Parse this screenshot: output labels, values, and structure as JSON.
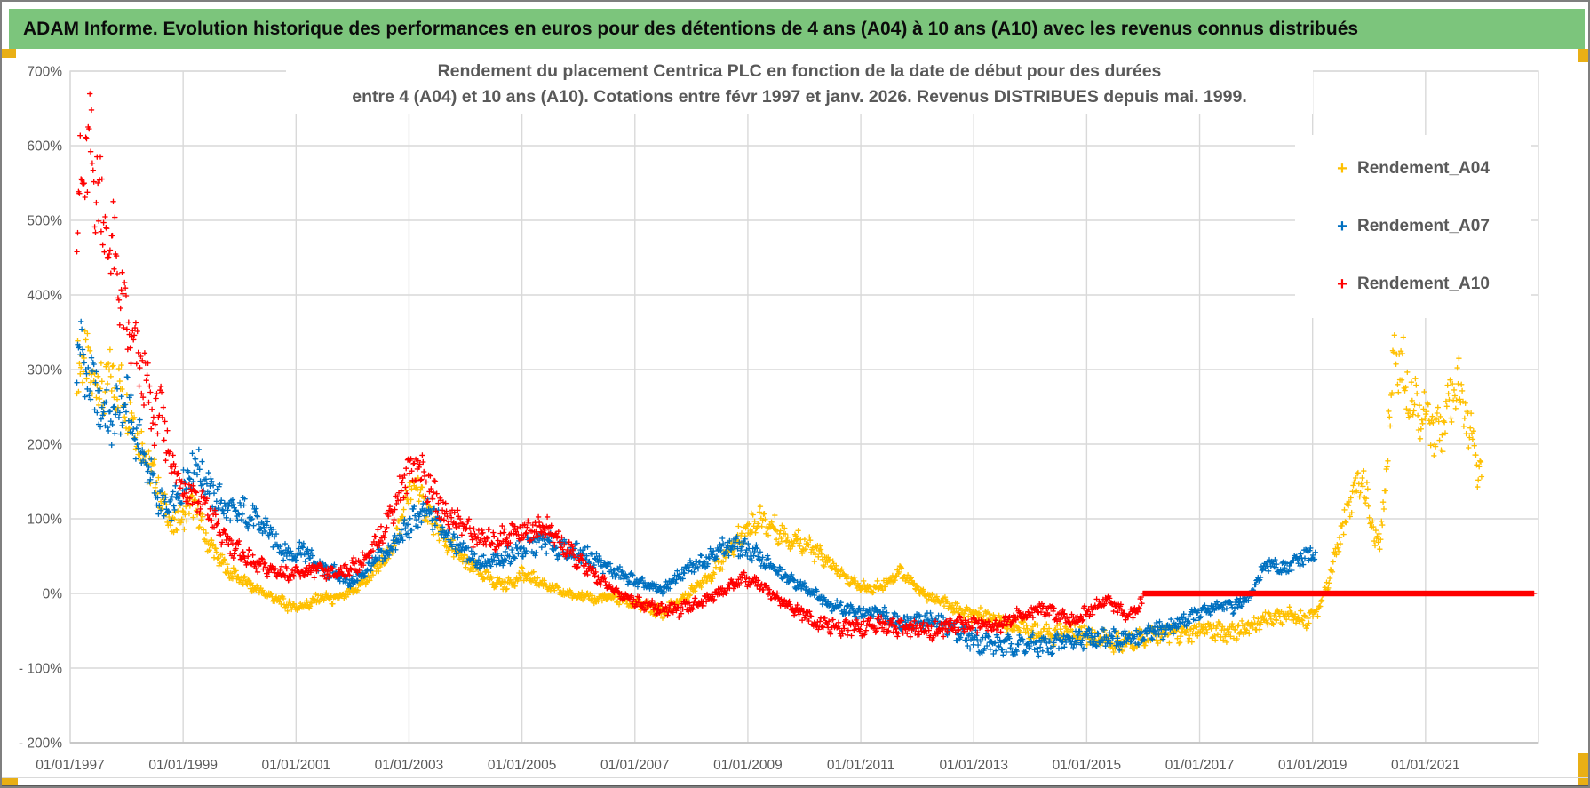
{
  "header": {
    "title": "ADAM Informe. Evolution historique des performances en euros pour des détentions de 4 ans (A04) à 10 ans (A10) avec les revenus connus distribués"
  },
  "colors": {
    "header_bg": "#7cc57c",
    "accent_gold": "#e9af15",
    "text_dark": "#595959",
    "grid": "#d9d9d9",
    "axis_line": "#bfbfbf",
    "series_a04": "#FFC000",
    "series_a07": "#0070C0",
    "series_a10": "#FF0000"
  },
  "chart_data": {
    "type": "scatter",
    "title_line1": "Rendement du placement Centrica PLC en fonction de la date de début pour des durées",
    "title_line2": "entre 4 (A04) et 10 ans (A10). Cotations entre févr 1997 et janv. 2026. Revenus DISTRIBUES depuis mai. 1999.",
    "legend_position": "right-top",
    "grid": true,
    "x_axis": {
      "min_year": 1997.0,
      "max_year": 2023.0,
      "ticks": [
        {
          "label": "01/01/1997",
          "year": 1997
        },
        {
          "label": "01/01/1999",
          "year": 1999
        },
        {
          "label": "01/01/2001",
          "year": 2001
        },
        {
          "label": "01/01/2003",
          "year": 2003
        },
        {
          "label": "01/01/2005",
          "year": 2005
        },
        {
          "label": "01/01/2007",
          "year": 2007
        },
        {
          "label": "01/01/2009",
          "year": 2009
        },
        {
          "label": "01/01/2011",
          "year": 2011
        },
        {
          "label": "01/01/2013",
          "year": 2013
        },
        {
          "label": "01/01/2015",
          "year": 2015
        },
        {
          "label": "01/01/2017",
          "year": 2017
        },
        {
          "label": "01/01/2019",
          "year": 2019
        },
        {
          "label": "01/01/2021",
          "year": 2021
        }
      ]
    },
    "y_axis": {
      "min": -200,
      "max": 700,
      "unit": "%",
      "ticks": [
        {
          "label": "700%",
          "value": 700
        },
        {
          "label": "600%",
          "value": 600
        },
        {
          "label": "500%",
          "value": 500
        },
        {
          "label": "400%",
          "value": 400
        },
        {
          "label": "300%",
          "value": 300
        },
        {
          "label": "200%",
          "value": 200
        },
        {
          "label": "100%",
          "value": 100
        },
        {
          "label": "0%",
          "value": 0
        },
        {
          "label": "- 100%",
          "value": -100
        },
        {
          "label": "- 200%",
          "value": -200
        }
      ]
    },
    "series": [
      {
        "name": "Rendement_A04",
        "color": "#FFC000",
        "marker": "plus",
        "start_year": 1997.12,
        "end_year": 2022.0,
        "points": [
          [
            1997.1,
            295
          ],
          [
            1997.2,
            320
          ],
          [
            1997.3,
            300
          ],
          [
            1997.45,
            285
          ],
          [
            1997.6,
            270
          ],
          [
            1997.75,
            290
          ],
          [
            1997.9,
            270
          ],
          [
            1998.05,
            250
          ],
          [
            1998.2,
            215
          ],
          [
            1998.4,
            175
          ],
          [
            1998.6,
            130
          ],
          [
            1998.8,
            90
          ],
          [
            1999.0,
            105
          ],
          [
            1999.2,
            120
          ],
          [
            1999.4,
            75
          ],
          [
            1999.6,
            50
          ],
          [
            1999.8,
            30
          ],
          [
            2000.0,
            20
          ],
          [
            2000.2,
            10
          ],
          [
            2000.45,
            0
          ],
          [
            2000.7,
            -10
          ],
          [
            2000.95,
            -18
          ],
          [
            2001.2,
            -15
          ],
          [
            2001.45,
            -5
          ],
          [
            2001.7,
            -8
          ],
          [
            2001.95,
            0
          ],
          [
            2002.2,
            15
          ],
          [
            2002.45,
            35
          ],
          [
            2002.7,
            60
          ],
          [
            2002.9,
            110
          ],
          [
            2003.1,
            150
          ],
          [
            2003.3,
            115
          ],
          [
            2003.5,
            85
          ],
          [
            2003.75,
            60
          ],
          [
            2004.0,
            42
          ],
          [
            2004.25,
            28
          ],
          [
            2004.5,
            15
          ],
          [
            2004.75,
            12
          ],
          [
            2005.0,
            25
          ],
          [
            2005.25,
            18
          ],
          [
            2005.5,
            8
          ],
          [
            2005.75,
            0
          ],
          [
            2006.0,
            -2
          ],
          [
            2006.3,
            -8
          ],
          [
            2006.6,
            -5
          ],
          [
            2006.9,
            -12
          ],
          [
            2007.2,
            -18
          ],
          [
            2007.5,
            -25
          ],
          [
            2007.8,
            -10
          ],
          [
            2008.1,
            10
          ],
          [
            2008.4,
            30
          ],
          [
            2008.7,
            60
          ],
          [
            2008.95,
            85
          ],
          [
            2009.2,
            100
          ],
          [
            2009.45,
            88
          ],
          [
            2009.7,
            75
          ],
          [
            2009.95,
            70
          ],
          [
            2010.2,
            55
          ],
          [
            2010.45,
            40
          ],
          [
            2010.7,
            22
          ],
          [
            2010.95,
            12
          ],
          [
            2011.2,
            5
          ],
          [
            2011.45,
            15
          ],
          [
            2011.7,
            30
          ],
          [
            2011.95,
            10
          ],
          [
            2012.2,
            -5
          ],
          [
            2012.45,
            -12
          ],
          [
            2012.7,
            -22
          ],
          [
            2012.95,
            -30
          ],
          [
            2013.2,
            -28
          ],
          [
            2013.5,
            -40
          ],
          [
            2013.8,
            -45
          ],
          [
            2014.1,
            -52
          ],
          [
            2014.4,
            -55
          ],
          [
            2014.7,
            -50
          ],
          [
            2015.0,
            -55
          ],
          [
            2015.3,
            -62
          ],
          [
            2015.6,
            -68
          ],
          [
            2015.9,
            -60
          ],
          [
            2016.2,
            -55
          ],
          [
            2016.5,
            -52
          ],
          [
            2016.8,
            -55
          ],
          [
            2017.1,
            -48
          ],
          [
            2017.4,
            -52
          ],
          [
            2017.7,
            -50
          ],
          [
            2018.0,
            -42
          ],
          [
            2018.3,
            -32
          ],
          [
            2018.6,
            -28
          ],
          [
            2018.9,
            -35
          ],
          [
            2019.1,
            -20
          ],
          [
            2019.3,
            20
          ],
          [
            2019.5,
            80
          ],
          [
            2019.7,
            130
          ],
          [
            2019.9,
            155
          ],
          [
            2020.05,
            90
          ],
          [
            2020.2,
            60
          ],
          [
            2020.35,
            220
          ],
          [
            2020.45,
            330
          ],
          [
            2020.55,
            305
          ],
          [
            2020.7,
            280
          ],
          [
            2020.85,
            255
          ],
          [
            2021.0,
            235
          ],
          [
            2021.15,
            215
          ],
          [
            2021.3,
            225
          ],
          [
            2021.45,
            250
          ],
          [
            2021.6,
            275
          ],
          [
            2021.75,
            225
          ],
          [
            2021.9,
            175
          ],
          [
            2022.0,
            150
          ]
        ]
      },
      {
        "name": "Rendement_A07",
        "color": "#0070C0",
        "marker": "plus",
        "start_year": 1997.12,
        "end_year": 2019.05,
        "points": [
          [
            1997.1,
            310
          ],
          [
            1997.17,
            340
          ],
          [
            1997.25,
            300
          ],
          [
            1997.4,
            275
          ],
          [
            1997.55,
            250
          ],
          [
            1997.7,
            230
          ],
          [
            1997.85,
            240
          ],
          [
            1998.0,
            255
          ],
          [
            1998.15,
            215
          ],
          [
            1998.3,
            185
          ],
          [
            1998.45,
            150
          ],
          [
            1998.6,
            120
          ],
          [
            1998.75,
            110
          ],
          [
            1998.9,
            125
          ],
          [
            1999.05,
            155
          ],
          [
            1999.2,
            178
          ],
          [
            1999.35,
            160
          ],
          [
            1999.5,
            135
          ],
          [
            1999.7,
            120
          ],
          [
            1999.9,
            105
          ],
          [
            2000.1,
            110
          ],
          [
            2000.3,
            95
          ],
          [
            2000.5,
            85
          ],
          [
            2000.7,
            65
          ],
          [
            2000.9,
            50
          ],
          [
            2001.1,
            60
          ],
          [
            2001.3,
            45
          ],
          [
            2001.5,
            30
          ],
          [
            2001.7,
            28
          ],
          [
            2001.9,
            15
          ],
          [
            2002.1,
            20
          ],
          [
            2002.35,
            40
          ],
          [
            2002.6,
            55
          ],
          [
            2002.85,
            75
          ],
          [
            2003.1,
            100
          ],
          [
            2003.35,
            108
          ],
          [
            2003.6,
            90
          ],
          [
            2003.85,
            65
          ],
          [
            2004.1,
            50
          ],
          [
            2004.35,
            38
          ],
          [
            2004.6,
            45
          ],
          [
            2004.85,
            55
          ],
          [
            2005.1,
            62
          ],
          [
            2005.4,
            70
          ],
          [
            2005.7,
            58
          ],
          [
            2006.0,
            55
          ],
          [
            2006.3,
            45
          ],
          [
            2006.6,
            30
          ],
          [
            2006.9,
            20
          ],
          [
            2007.2,
            10
          ],
          [
            2007.5,
            5
          ],
          [
            2007.8,
            25
          ],
          [
            2008.1,
            40
          ],
          [
            2008.4,
            55
          ],
          [
            2008.7,
            65
          ],
          [
            2009.0,
            58
          ],
          [
            2009.2,
            50
          ],
          [
            2009.5,
            30
          ],
          [
            2009.8,
            15
          ],
          [
            2010.1,
            5
          ],
          [
            2010.4,
            -12
          ],
          [
            2010.7,
            -20
          ],
          [
            2011.0,
            -28
          ],
          [
            2011.3,
            -25
          ],
          [
            2011.6,
            -35
          ],
          [
            2011.9,
            -38
          ],
          [
            2012.2,
            -35
          ],
          [
            2012.5,
            -42
          ],
          [
            2012.8,
            -55
          ],
          [
            2013.1,
            -65
          ],
          [
            2013.5,
            -70
          ],
          [
            2013.9,
            -68
          ],
          [
            2014.3,
            -70
          ],
          [
            2014.7,
            -62
          ],
          [
            2015.1,
            -58
          ],
          [
            2015.5,
            -62
          ],
          [
            2015.9,
            -60
          ],
          [
            2016.2,
            -52
          ],
          [
            2016.5,
            -45
          ],
          [
            2016.8,
            -32
          ],
          [
            2017.1,
            -25
          ],
          [
            2017.35,
            -15
          ],
          [
            2017.6,
            -18
          ],
          [
            2017.9,
            -5
          ],
          [
            2018.1,
            30
          ],
          [
            2018.3,
            42
          ],
          [
            2018.5,
            30
          ],
          [
            2018.7,
            42
          ],
          [
            2018.9,
            52
          ],
          [
            2019.05,
            50
          ]
        ]
      },
      {
        "name": "Rendement_A10",
        "color": "#FF0000",
        "marker": "plus",
        "start_year": 1997.12,
        "end_year": 2015.98,
        "points": [
          [
            1997.1,
            480
          ],
          [
            1997.15,
            540
          ],
          [
            1997.25,
            560
          ],
          [
            1997.35,
            585
          ],
          [
            1997.45,
            555
          ],
          [
            1997.55,
            530
          ],
          [
            1997.65,
            470
          ],
          [
            1997.75,
            465
          ],
          [
            1997.85,
            420
          ],
          [
            1997.95,
            370
          ],
          [
            1998.1,
            330
          ],
          [
            1998.3,
            290
          ],
          [
            1998.5,
            230
          ],
          [
            1998.62,
            245
          ],
          [
            1998.7,
            205
          ],
          [
            1998.8,
            175
          ],
          [
            1999.0,
            145
          ],
          [
            1999.2,
            130
          ],
          [
            1999.45,
            110
          ],
          [
            1999.7,
            75
          ],
          [
            2000.0,
            55
          ],
          [
            2000.3,
            38
          ],
          [
            2000.6,
            30
          ],
          [
            2001.0,
            25
          ],
          [
            2001.3,
            32
          ],
          [
            2001.6,
            25
          ],
          [
            2002.0,
            35
          ],
          [
            2002.3,
            50
          ],
          [
            2002.6,
            95
          ],
          [
            2002.8,
            130
          ],
          [
            2003.1,
            178
          ],
          [
            2003.3,
            150
          ],
          [
            2003.6,
            110
          ],
          [
            2003.9,
            95
          ],
          [
            2004.2,
            75
          ],
          [
            2004.5,
            70
          ],
          [
            2004.8,
            80
          ],
          [
            2005.1,
            85
          ],
          [
            2005.35,
            90
          ],
          [
            2005.6,
            75
          ],
          [
            2005.9,
            50
          ],
          [
            2006.2,
            30
          ],
          [
            2006.6,
            5
          ],
          [
            2007.0,
            -10
          ],
          [
            2007.4,
            -20
          ],
          [
            2007.8,
            -22
          ],
          [
            2008.2,
            -10
          ],
          [
            2008.6,
            5
          ],
          [
            2008.9,
            20
          ],
          [
            2009.15,
            15
          ],
          [
            2009.4,
            0
          ],
          [
            2009.7,
            -15
          ],
          [
            2010.0,
            -30
          ],
          [
            2010.3,
            -42
          ],
          [
            2010.7,
            -48
          ],
          [
            2011.0,
            -45
          ],
          [
            2011.4,
            -42
          ],
          [
            2011.8,
            -48
          ],
          [
            2012.2,
            -50
          ],
          [
            2012.6,
            -45
          ],
          [
            2013.0,
            -40
          ],
          [
            2013.4,
            -42
          ],
          [
            2013.8,
            -30
          ],
          [
            2014.2,
            -22
          ],
          [
            2014.5,
            -28
          ],
          [
            2014.8,
            -35
          ],
          [
            2015.1,
            -20
          ],
          [
            2015.35,
            -8
          ],
          [
            2015.55,
            -20
          ],
          [
            2015.75,
            -35
          ],
          [
            2015.95,
            -12
          ]
        ],
        "flat_zero_segment": {
          "start_year": 2016.0,
          "end_year": 2022.92,
          "value": 0
        }
      }
    ]
  }
}
